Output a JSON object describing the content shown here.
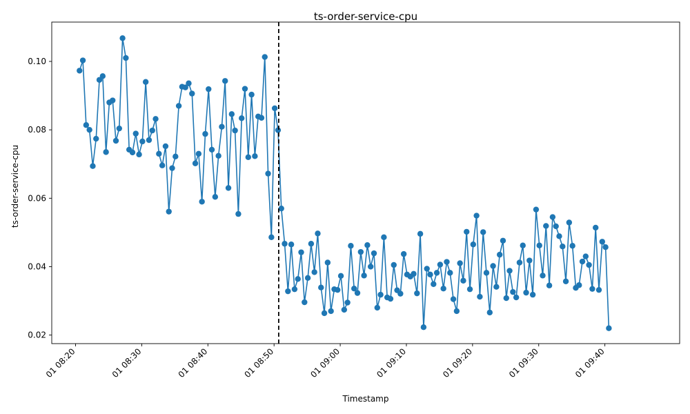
{
  "chart_data": {
    "type": "line",
    "title": "ts-order-service-cpu",
    "xlabel": "Timestamp",
    "ylabel": "ts-order-service-cpu",
    "x_ticks": [
      "01 08:20",
      "01 08:30",
      "01 08:40",
      "01 08:50",
      "01 09:00",
      "01 09:10",
      "01 09:20",
      "01 09:30",
      "01 09:40"
    ],
    "y_ticks": [
      "0.02",
      "0.04",
      "0.06",
      "0.08",
      "0.10"
    ],
    "x_start": "2024-01-01T08:20:00",
    "x_range_minutes": [
      -3.6,
      91.3
    ],
    "ylim": [
      0.0175,
      0.1115
    ],
    "grid": false,
    "marker_step_minutes": 0.5,
    "line_color": "#1f77b4",
    "vline_minute": 30.7,
    "vline_color": "#000000",
    "series": [
      {
        "start_minute": 0.6,
        "values": [
          0.0973,
          0.1003,
          0.0814,
          0.08,
          0.0694,
          0.0774,
          0.0946,
          0.0957,
          0.0735,
          0.088,
          0.0886,
          0.0768,
          0.0804,
          0.1068,
          0.101,
          0.0742,
          0.0734,
          0.0789,
          0.0728,
          0.0766,
          0.094,
          0.077,
          0.0798,
          0.0832,
          0.073,
          0.0696,
          0.0752,
          0.0561,
          0.0688,
          0.0722,
          0.087,
          0.0926,
          0.0924,
          0.0936,
          0.0906,
          0.0702,
          0.073,
          0.059,
          0.0788,
          0.0919,
          0.0742,
          0.0604,
          0.0724,
          0.0809,
          0.0943,
          0.063,
          0.0846,
          0.0798,
          0.0554,
          0.0834,
          0.092,
          0.072,
          0.0903,
          0.0723,
          0.0839,
          0.0835,
          0.1013,
          0.0672,
          0.0486,
          0.0863,
          0.0799,
          0.057,
          0.0467,
          0.0328,
          0.0465,
          0.0334,
          0.0364,
          0.0442,
          0.0296,
          0.0367,
          0.0467,
          0.0384,
          0.0497,
          0.0339,
          0.0264,
          0.0412,
          0.027,
          0.0334,
          0.0332,
          0.0373,
          0.0274,
          0.0295,
          0.0461,
          0.0336,
          0.0323,
          0.0443,
          0.0374,
          0.0463,
          0.04,
          0.0439,
          0.028,
          0.0318,
          0.0486,
          0.031,
          0.0306,
          0.0405,
          0.0331,
          0.0321,
          0.0437,
          0.0377,
          0.0371,
          0.0379,
          0.0322,
          0.0496,
          0.0223,
          0.0394,
          0.0377,
          0.0349,
          0.0382,
          0.0406,
          0.0336,
          0.0414,
          0.0382,
          0.0305,
          0.027,
          0.041,
          0.0359,
          0.0502,
          0.0334,
          0.0465,
          0.0549,
          0.0312,
          0.0501,
          0.0382,
          0.0266,
          0.0402,
          0.0341,
          0.0435,
          0.0476,
          0.0308,
          0.0388,
          0.0326,
          0.031,
          0.0412,
          0.0462,
          0.0324,
          0.0418,
          0.0318,
          0.0567,
          0.0462,
          0.0374,
          0.0519,
          0.0345,
          0.0545,
          0.0518,
          0.0489,
          0.0459,
          0.0357,
          0.0529,
          0.0461,
          0.0338,
          0.0346,
          0.0415,
          0.043,
          0.0405,
          0.0335,
          0.0514,
          0.0332,
          0.0473,
          0.0457,
          0.022
        ]
      }
    ]
  }
}
